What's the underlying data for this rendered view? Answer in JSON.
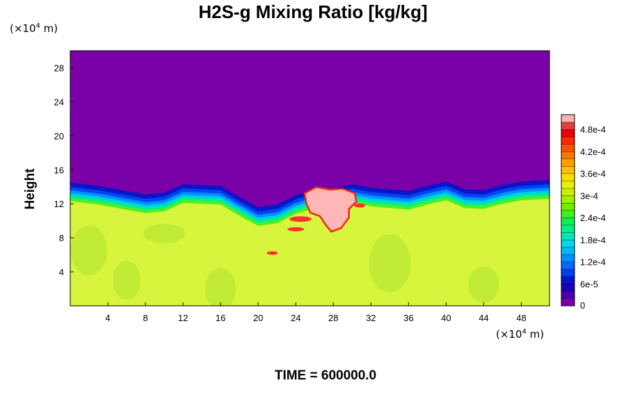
{
  "chart_data": {
    "type": "heatmap",
    "title": "H2S-g Mixing Ratio [kg/kg]",
    "ylabel": "Height",
    "xlabel": "",
    "x_unit": {
      "prefix": "(×10",
      "exp": "4",
      "suffix": " m)"
    },
    "y_unit": {
      "prefix": "(×10",
      "exp": "4",
      "suffix": " m)"
    },
    "x_ticks": [
      4,
      8,
      12,
      16,
      20,
      24,
      28,
      32,
      36,
      40,
      44,
      48
    ],
    "y_ticks": [
      4,
      8,
      12,
      16,
      20,
      24,
      28
    ],
    "xlim": [
      0,
      51
    ],
    "ylim": [
      0,
      30
    ],
    "colorbar": {
      "labels": [
        "0",
        "6e-5",
        "1.2e-4",
        "1.8e-4",
        "2.4e-4",
        "3e-4",
        "3.6e-4",
        "4.2e-4",
        "4.8e-4"
      ],
      "label_values": [
        0,
        6e-05,
        0.00012,
        0.00018,
        0.00024,
        0.0003,
        0.00036,
        0.00042,
        0.00048
      ],
      "range": [
        0,
        0.00052
      ],
      "levels": 26,
      "colors": [
        "#7a00a8",
        "#4b00b0",
        "#1c00b8",
        "#0014d0",
        "#0040e8",
        "#0068ff",
        "#0090ff",
        "#00b8ff",
        "#00d8e8",
        "#00e8b8",
        "#00f088",
        "#10f050",
        "#40f020",
        "#70f000",
        "#a0f000",
        "#c8f000",
        "#e8f000",
        "#f8e000",
        "#ffc000",
        "#ffa000",
        "#ff7800",
        "#ff5000",
        "#ff2800",
        "#f00000",
        "#e04040",
        "#ffb0b0"
      ]
    },
    "regions": {
      "background_top": "#7a00a8",
      "background_bottom": "#d7f53d",
      "patch_green": "#bde934",
      "boundary_height_approx": 12.5,
      "plume_center_x": 28,
      "plume_color": "#ffb6b6",
      "plume_edge": "#e02020"
    }
  },
  "footer": {
    "time_label": "TIME = 600000.0"
  }
}
